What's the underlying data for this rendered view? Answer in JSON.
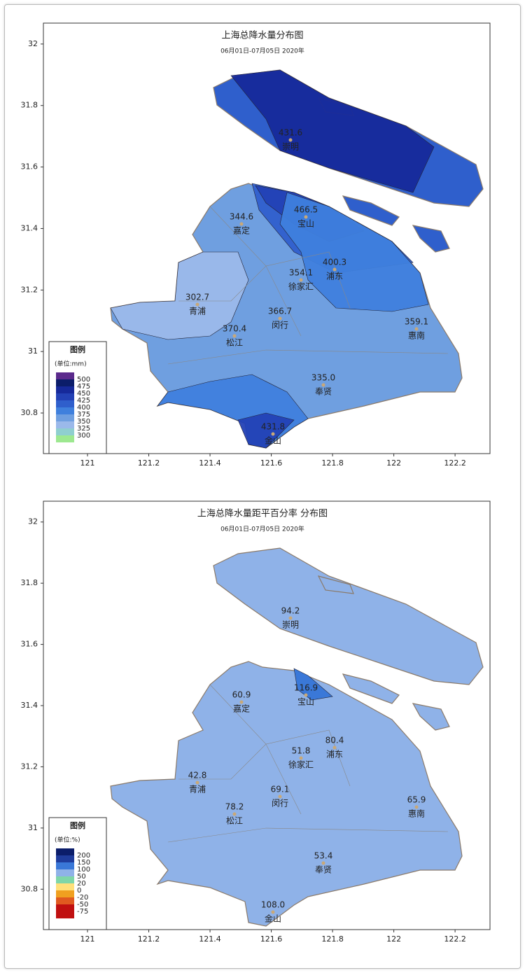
{
  "chart_data": [
    {
      "type": "map",
      "title": "上海总降水量分布图",
      "subtitle": "06月01日-07月05日 2020年",
      "xlim": [
        120.856,
        122.314
      ],
      "ylim": [
        30.668,
        32.068
      ],
      "xticks": [
        121,
        121.2,
        121.4,
        121.6,
        121.8,
        122,
        122.2
      ],
      "yticks": [
        30.8,
        31,
        31.2,
        31.4,
        31.6,
        31.8,
        32
      ],
      "stations": [
        "崇明",
        "宝山",
        "嘉定",
        "浦东",
        "徐家汇",
        "青浦",
        "闵行",
        "松江",
        "惠南",
        "奉贤",
        "金山"
      ],
      "values": [
        431.6,
        466.5,
        344.6,
        400.3,
        354.1,
        302.7,
        366.7,
        370.4,
        359.1,
        335.0,
        431.8
      ],
      "value_labels": [
        "431.6",
        "466.5",
        "344.6",
        "400.3",
        "354.1",
        "302.7",
        "366.7",
        "370.4",
        "359.1",
        "335.0",
        "431.8"
      ],
      "legend": {
        "title": "图例",
        "unit": "(单位:mm)",
        "levels": [
          500,
          475,
          450,
          425,
          400,
          375,
          350,
          325,
          300
        ],
        "colors": [
          "#5b2a8c",
          "#0b1d6a",
          "#16299a",
          "#2341b5",
          "#2f5fcc",
          "#3f80dd",
          "#6f9fe0",
          "#9bb9ea",
          "#8fcfcf",
          "#9de890"
        ]
      }
    },
    {
      "type": "map",
      "title": "上海总降水量距平百分率 分布图",
      "subtitle": "06月01日-07月05日 2020年",
      "xlim": [
        120.856,
        122.314
      ],
      "ylim": [
        30.668,
        32.068
      ],
      "xticks": [
        121,
        121.2,
        121.4,
        121.6,
        121.8,
        122,
        122.2
      ],
      "yticks": [
        30.8,
        31,
        31.2,
        31.4,
        31.6,
        31.8,
        32
      ],
      "stations": [
        "崇明",
        "宝山",
        "嘉定",
        "浦东",
        "徐家汇",
        "青浦",
        "闵行",
        "松江",
        "惠南",
        "奉贤",
        "金山"
      ],
      "values": [
        94.2,
        116.9,
        60.9,
        80.4,
        51.8,
        42.8,
        69.1,
        78.2,
        65.9,
        53.4,
        108.0
      ],
      "value_labels": [
        "94.2",
        "116.9",
        "60.9",
        "80.4",
        "51.8",
        "42.8",
        "69.1",
        "78.2",
        "65.9",
        "53.4",
        "108.0"
      ],
      "legend": {
        "title": "图例",
        "unit": "(单位:%)",
        "levels": [
          200,
          150,
          100,
          50,
          20,
          0,
          -20,
          -50,
          -75
        ],
        "colors": [
          "#0b1d6a",
          "#1f3c9c",
          "#3a78d8",
          "#8fb2e8",
          "#7fd6a8",
          "#ffe07a",
          "#f0a020",
          "#e05a20",
          "#c01010",
          "#c01010"
        ]
      }
    }
  ]
}
